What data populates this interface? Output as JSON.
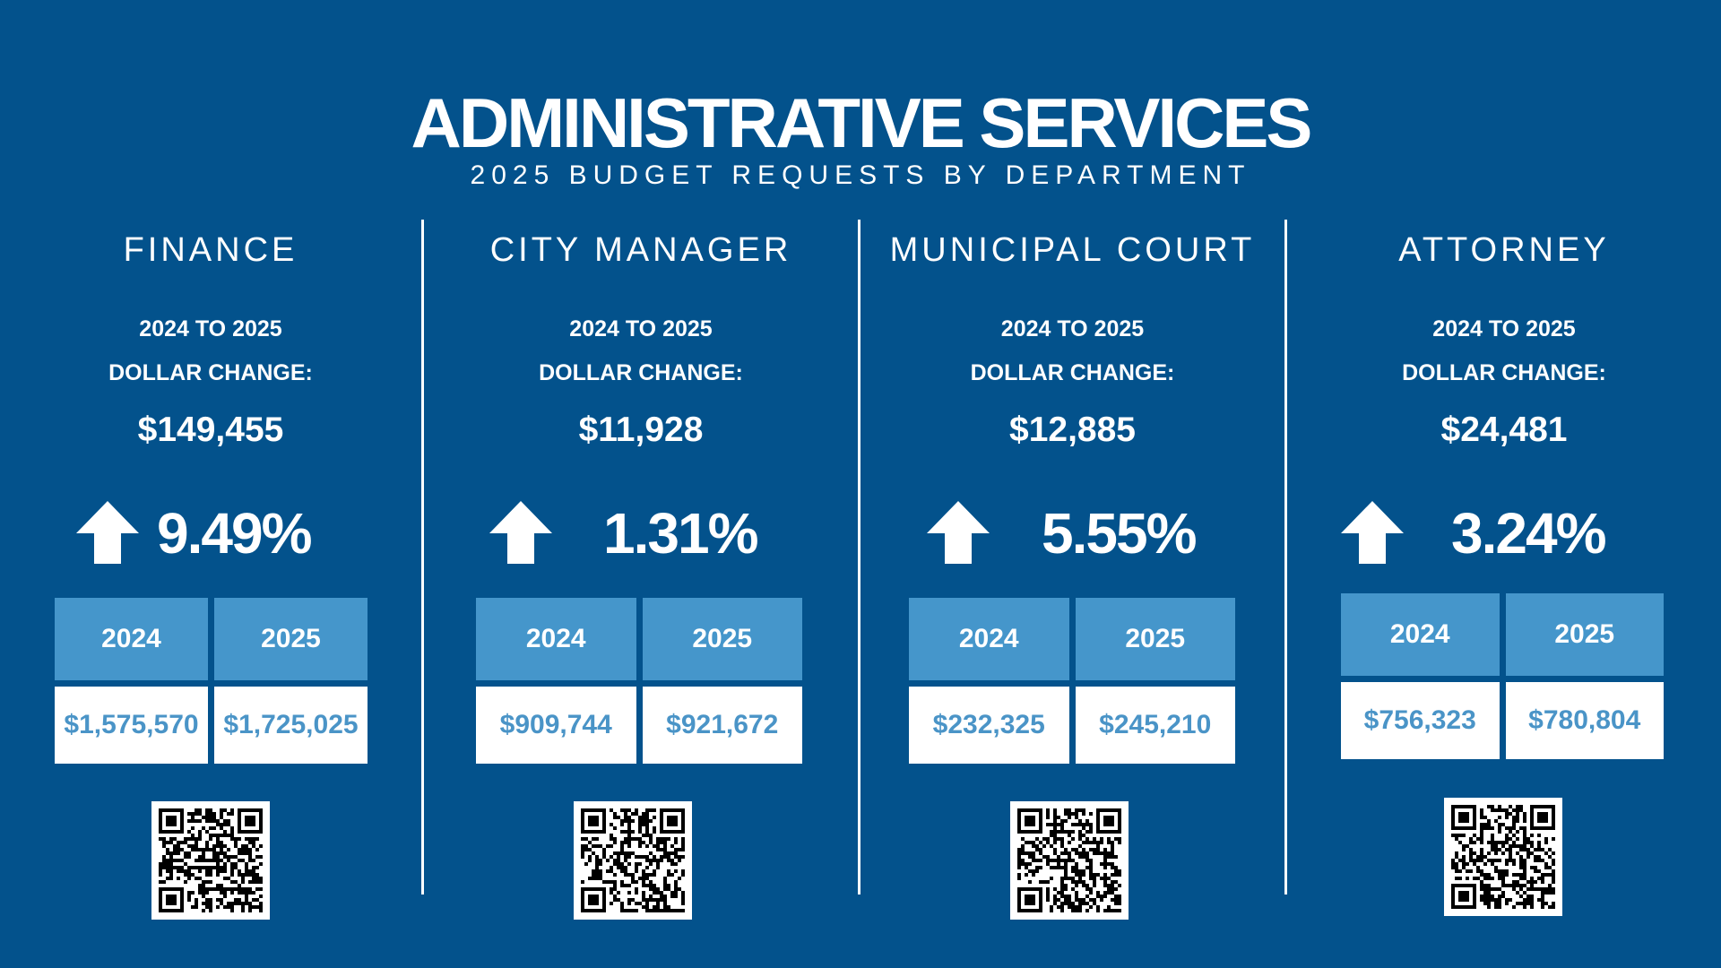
{
  "header": {
    "title": "ADMINISTRATIVE SERVICES",
    "subtitle": "2025 BUDGET REQUESTS BY DEPARTMENT"
  },
  "colors": {
    "background": "#03528c",
    "table_header": "#4596cb",
    "value_text": "#4a94c7"
  },
  "departments": [
    {
      "name": "FINANCE",
      "label_line1": "2024 TO 2025",
      "label_line2": "DOLLAR CHANGE:",
      "dollar_change": "$149,455",
      "trend_icon": "arrow-up-icon",
      "percent_change": "9.49%",
      "year1": "2024",
      "year2": "2025",
      "value1": "$1,575,570",
      "value2": "$1,725,025"
    },
    {
      "name": "CITY MANAGER",
      "label_line1": "2024 TO 2025",
      "label_line2": "DOLLAR CHANGE:",
      "dollar_change": "$11,928",
      "trend_icon": "arrow-up-icon",
      "percent_change": "1.31%",
      "year1": "2024",
      "year2": "2025",
      "value1": "$909,744",
      "value2": "$921,672"
    },
    {
      "name": "MUNICIPAL COURT",
      "label_line1": "2024 TO 2025",
      "label_line2": "DOLLAR CHANGE:",
      "dollar_change": "$12,885",
      "trend_icon": "arrow-up-icon",
      "percent_change": "5.55%",
      "year1": "2024",
      "year2": "2025",
      "value1": "$232,325",
      "value2": "$245,210"
    },
    {
      "name": "ATTORNEY",
      "label_line1": "2024 TO 2025",
      "label_line2": "DOLLAR CHANGE:",
      "dollar_change": "$24,481",
      "trend_icon": "arrow-up-icon",
      "percent_change": "3.24%",
      "year1": "2024",
      "year2": "2025",
      "value1": "$756,323",
      "value2": "$780,804"
    }
  ]
}
